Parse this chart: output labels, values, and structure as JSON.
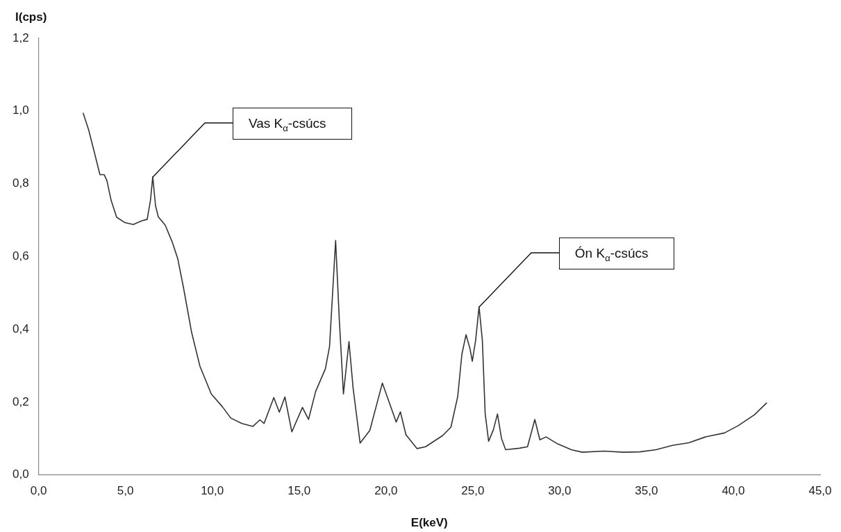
{
  "chart_data": {
    "type": "line",
    "xlabel": "E(keV)",
    "ylabel": "I(cps)",
    "series": [
      {
        "color": "#333333",
        "x": [
          2.56,
          2.88,
          3.21,
          3.53,
          3.77,
          3.93,
          4.17,
          4.49,
          4.97,
          5.45,
          5.93,
          6.25,
          6.44,
          6.57,
          6.73,
          6.89,
          7.29,
          7.69,
          8.01,
          8.33,
          8.81,
          9.29,
          9.94,
          10.58,
          11.06,
          11.7,
          12.34,
          12.74,
          12.98,
          13.54,
          13.86,
          14.18,
          14.58,
          15.19,
          15.54,
          15.95,
          16.51,
          16.75,
          17.1,
          17.31,
          17.55,
          17.87,
          18.11,
          18.51,
          19.07,
          19.79,
          20.59,
          20.83,
          21.15,
          21.79,
          22.28,
          23.27,
          23.74,
          24.13,
          24.37,
          24.61,
          24.84,
          24.97,
          25.16,
          25.36,
          25.55,
          25.71,
          25.91,
          26.18,
          26.42,
          26.65,
          26.89,
          27.68,
          28.15,
          28.57,
          28.86,
          29.22,
          29.88,
          30.67,
          31.3,
          32.56,
          33.66,
          34.61,
          35.55,
          36.5,
          37.44,
          38.39,
          39.49,
          40.28,
          41.22,
          41.93
        ],
        "values": [
          0.995,
          0.948,
          0.886,
          0.825,
          0.825,
          0.809,
          0.755,
          0.708,
          0.693,
          0.688,
          0.698,
          0.702,
          0.755,
          0.819,
          0.74,
          0.709,
          0.686,
          0.64,
          0.594,
          0.517,
          0.391,
          0.298,
          0.222,
          0.187,
          0.156,
          0.141,
          0.133,
          0.151,
          0.141,
          0.212,
          0.172,
          0.214,
          0.118,
          0.185,
          0.152,
          0.229,
          0.291,
          0.352,
          0.644,
          0.429,
          0.222,
          0.366,
          0.237,
          0.087,
          0.122,
          0.252,
          0.145,
          0.173,
          0.11,
          0.072,
          0.077,
          0.108,
          0.131,
          0.215,
          0.331,
          0.385,
          0.346,
          0.312,
          0.369,
          0.462,
          0.369,
          0.169,
          0.092,
          0.123,
          0.167,
          0.1,
          0.069,
          0.073,
          0.077,
          0.152,
          0.096,
          0.104,
          0.085,
          0.069,
          0.062,
          0.065,
          0.062,
          0.063,
          0.069,
          0.081,
          0.088,
          0.104,
          0.115,
          0.135,
          0.165,
          0.198
        ]
      }
    ],
    "xlim": [
      0,
      45
    ],
    "xticks": [
      {
        "value": 0,
        "label": "0,0"
      },
      {
        "value": 5,
        "label": "5,0"
      },
      {
        "value": 10,
        "label": "10,0"
      },
      {
        "value": 15,
        "label": "15,0"
      },
      {
        "value": 20,
        "label": "20,0"
      },
      {
        "value": 25,
        "label": "25,0"
      },
      {
        "value": 30,
        "label": "30,0"
      },
      {
        "value": 35,
        "label": "35,0"
      },
      {
        "value": 40,
        "label": "40,0"
      },
      {
        "value": 45,
        "label": "45,0"
      }
    ],
    "ylim": [
      0,
      1.2
    ],
    "yticks": [
      {
        "value": 0,
        "label": "0,0"
      },
      {
        "value": 0.2,
        "label": "0,2"
      },
      {
        "value": 0.4,
        "label": "0,4"
      },
      {
        "value": 0.6,
        "label": "0,6"
      },
      {
        "value": 0.8,
        "label": "0,8"
      },
      {
        "value": 1.0,
        "label": "1,0"
      },
      {
        "value": 1.2,
        "label": "1,2"
      }
    ],
    "annotations": [
      {
        "text": "Vas K$_{α}$-csúcs",
        "x": 6.57,
        "y": 0.819
      },
      {
        "text": "Ón K$_{α}$-csúcs",
        "x": 25.36,
        "y": 0.462
      }
    ],
    "grid": false,
    "legend": false,
    "marker": "none",
    "line_style": "solid"
  }
}
